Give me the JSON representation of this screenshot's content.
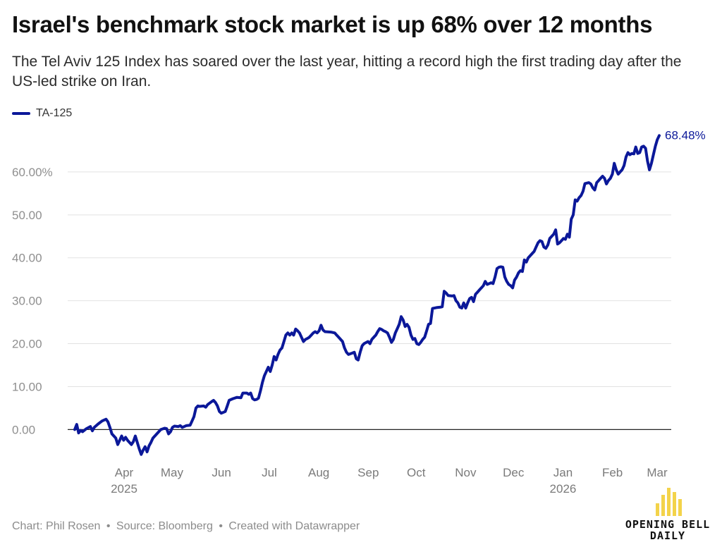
{
  "header": {
    "title": "Israel's benchmark stock market is up 68% over 12 months",
    "subtitle": "The Tel Aviv 125 Index has soared over the last year, hitting a record high the first trading day after the US-led strike on Iran."
  },
  "footer": {
    "credit": "Chart: Phil Rosen",
    "source": "Source: Bloomberg",
    "tool": "Created with Datawrapper",
    "separator": "•"
  },
  "brand": {
    "line1": "OPENING BELL",
    "line2": "DAILY",
    "accent_color": "#f3d34a"
  },
  "chart_data": {
    "type": "line",
    "ylim": [
      -7,
      70
    ],
    "yticks": [
      0,
      10,
      20,
      30,
      40,
      50,
      60
    ],
    "ytick_labels": [
      "0.00",
      "10.00",
      "20.00",
      "30.00",
      "40.00",
      "50.00",
      "60.00%"
    ],
    "xlim": [
      0,
      365
    ],
    "xticks": [
      {
        "day": 30,
        "label": "Apr",
        "sublabel": "2025"
      },
      {
        "day": 60,
        "label": "May",
        "sublabel": ""
      },
      {
        "day": 91,
        "label": "Jun",
        "sublabel": ""
      },
      {
        "day": 121,
        "label": "Jul",
        "sublabel": ""
      },
      {
        "day": 152,
        "label": "Aug",
        "sublabel": ""
      },
      {
        "day": 183,
        "label": "Sep",
        "sublabel": ""
      },
      {
        "day": 213,
        "label": "Oct",
        "sublabel": ""
      },
      {
        "day": 244,
        "label": "Nov",
        "sublabel": ""
      },
      {
        "day": 274,
        "label": "Dec",
        "sublabel": ""
      },
      {
        "day": 305,
        "label": "Jan",
        "sublabel": "2026"
      },
      {
        "day": 336,
        "label": "Feb",
        "sublabel": ""
      },
      {
        "day": 364,
        "label": "Mar",
        "sublabel": ""
      }
    ],
    "grid": true,
    "legend": "top-left",
    "series": [
      {
        "name": "TA-125",
        "color": "#0b1899",
        "end_label": "68.48%",
        "points": [
          [
            0,
            0
          ],
          [
            1,
            1.2
          ],
          [
            2,
            -0.8
          ],
          [
            3,
            -0.2
          ],
          [
            4,
            -0.5
          ],
          [
            6,
            0.2
          ],
          [
            8,
            0.7
          ],
          [
            9,
            -0.3
          ],
          [
            10,
            0.5
          ],
          [
            12,
            1.3
          ],
          [
            14,
            2
          ],
          [
            16,
            2.4
          ],
          [
            17,
            1.8
          ],
          [
            18,
            0.5
          ],
          [
            19,
            -1
          ],
          [
            21,
            -2
          ],
          [
            22,
            -3.5
          ],
          [
            23,
            -2.5
          ],
          [
            24,
            -1.5
          ],
          [
            25,
            -2.5
          ],
          [
            26,
            -1.8
          ],
          [
            27,
            -2.5
          ],
          [
            28,
            -3
          ],
          [
            29,
            -3.5
          ],
          [
            30,
            -2.8
          ],
          [
            31,
            -1.5
          ],
          [
            32,
            -3
          ],
          [
            33,
            -4.5
          ],
          [
            34,
            -5.8
          ],
          [
            35,
            -4.8
          ],
          [
            36,
            -4
          ],
          [
            37,
            -5.2
          ],
          [
            38,
            -3.8
          ],
          [
            39,
            -3
          ],
          [
            40,
            -2
          ],
          [
            42,
            -1
          ],
          [
            44,
            0
          ],
          [
            46,
            0.3
          ],
          [
            47,
            0.2
          ],
          [
            48,
            -1
          ],
          [
            49,
            -0.5
          ],
          [
            50,
            0.5
          ],
          [
            51,
            0.8
          ],
          [
            53,
            0.7
          ],
          [
            54,
            0.9
          ],
          [
            55,
            0.5
          ],
          [
            57,
            0.9
          ],
          [
            59,
            1
          ],
          [
            60,
            2
          ],
          [
            61,
            3
          ],
          [
            62,
            5
          ],
          [
            63,
            5.5
          ],
          [
            64,
            5.4
          ],
          [
            66,
            5.5
          ],
          [
            67,
            5.2
          ],
          [
            68,
            5.8
          ],
          [
            70,
            6.5
          ],
          [
            71,
            6.8
          ],
          [
            72,
            6.3
          ],
          [
            73,
            5.5
          ],
          [
            74,
            4.2
          ],
          [
            75,
            3.8
          ],
          [
            77,
            4.2
          ],
          [
            78,
            5.5
          ],
          [
            79,
            6.8
          ],
          [
            81,
            7.2
          ],
          [
            83,
            7.5
          ],
          [
            85,
            7.4
          ],
          [
            86,
            8.5
          ],
          [
            88,
            8.5
          ],
          [
            89,
            8.2
          ],
          [
            90,
            8.5
          ],
          [
            91,
            7.2
          ],
          [
            92,
            6.9
          ],
          [
            93,
            7
          ],
          [
            94,
            7.3
          ],
          [
            95,
            9
          ],
          [
            96,
            11
          ],
          [
            97,
            12.5
          ],
          [
            98,
            13.5
          ],
          [
            99,
            14.5
          ],
          [
            100,
            13.5
          ],
          [
            101,
            15
          ],
          [
            102,
            17
          ],
          [
            103,
            16.2
          ],
          [
            104,
            17.5
          ],
          [
            105,
            18.5
          ],
          [
            106,
            19
          ],
          [
            107,
            20.5
          ],
          [
            108,
            22
          ],
          [
            109,
            22.5
          ],
          [
            110,
            22
          ],
          [
            111,
            22.5
          ],
          [
            112,
            22
          ],
          [
            113,
            23.4
          ],
          [
            114,
            23
          ],
          [
            115,
            22.5
          ],
          [
            116,
            21.5
          ],
          [
            117,
            20.5
          ],
          [
            118,
            21
          ],
          [
            119,
            21.2
          ],
          [
            120,
            21.5
          ],
          [
            121,
            22
          ],
          [
            122,
            22.5
          ],
          [
            123,
            22.8
          ],
          [
            124,
            22.5
          ],
          [
            125,
            23
          ],
          [
            126,
            24.3
          ],
          [
            127,
            23.2
          ],
          [
            128,
            22.8
          ],
          [
            131,
            22.7
          ],
          [
            133,
            22.5
          ],
          [
            134,
            22
          ],
          [
            135,
            21.5
          ],
          [
            136,
            21
          ],
          [
            137,
            20.5
          ],
          [
            138,
            19
          ],
          [
            139,
            18
          ],
          [
            140,
            17.5
          ],
          [
            142,
            17.8
          ],
          [
            143,
            18
          ],
          [
            144,
            16.5
          ],
          [
            145,
            16.2
          ],
          [
            146,
            18
          ],
          [
            147,
            19.5
          ],
          [
            148,
            20
          ],
          [
            150,
            20.5
          ],
          [
            151,
            20
          ],
          [
            152,
            21
          ],
          [
            153,
            21.5
          ],
          [
            154,
            22
          ],
          [
            155,
            22.8
          ],
          [
            156,
            23.5
          ],
          [
            157,
            23.3
          ],
          [
            158,
            23
          ],
          [
            159,
            22.8
          ],
          [
            160,
            22.5
          ],
          [
            161,
            21.5
          ],
          [
            162,
            20.3
          ],
          [
            163,
            21
          ],
          [
            164,
            22.5
          ],
          [
            165,
            23.5
          ],
          [
            166,
            24.5
          ],
          [
            167,
            26.3
          ],
          [
            168,
            25.5
          ],
          [
            169,
            24
          ],
          [
            170,
            24.5
          ],
          [
            171,
            23.8
          ],
          [
            172,
            22
          ],
          [
            173,
            21
          ],
          [
            174,
            21.2
          ],
          [
            175,
            20
          ],
          [
            176,
            19.8
          ],
          [
            177,
            20.3
          ],
          [
            178,
            21
          ],
          [
            179,
            21.5
          ],
          [
            180,
            23
          ],
          [
            181,
            24.5
          ],
          [
            182,
            24.7
          ],
          [
            183,
            28.2
          ],
          [
            185,
            28.4
          ],
          [
            187,
            28.5
          ],
          [
            188,
            28.6
          ],
          [
            189,
            32.2
          ],
          [
            190,
            31.8
          ],
          [
            191,
            31.2
          ],
          [
            193,
            31.1
          ],
          [
            194,
            31.2
          ],
          [
            195,
            30
          ],
          [
            196,
            29.5
          ],
          [
            197,
            28.5
          ],
          [
            198,
            28.3
          ],
          [
            199,
            29.5
          ],
          [
            200,
            28.3
          ],
          [
            201,
            29.5
          ],
          [
            202,
            30.5
          ],
          [
            203,
            30.8
          ],
          [
            204,
            29.8
          ],
          [
            205,
            31.5
          ],
          [
            206,
            32
          ],
          [
            207,
            32.5
          ],
          [
            208,
            33
          ],
          [
            209,
            33.5
          ],
          [
            210,
            34.5
          ],
          [
            211,
            33.8
          ],
          [
            212,
            34
          ],
          [
            213,
            34.2
          ],
          [
            214,
            34
          ],
          [
            215,
            35.5
          ],
          [
            216,
            37.5
          ],
          [
            217,
            37.8
          ],
          [
            218,
            37.9
          ],
          [
            219,
            37.8
          ],
          [
            220,
            35.5
          ],
          [
            221,
            34.5
          ],
          [
            222,
            33.8
          ],
          [
            223,
            33.5
          ],
          [
            224,
            33
          ],
          [
            225,
            34.8
          ],
          [
            226,
            35.5
          ],
          [
            227,
            36.5
          ],
          [
            228,
            37
          ],
          [
            229,
            36.8
          ],
          [
            230,
            39.5
          ],
          [
            231,
            39
          ],
          [
            232,
            40
          ],
          [
            233,
            40.5
          ],
          [
            234,
            41
          ],
          [
            235,
            41.5
          ],
          [
            236,
            42.5
          ],
          [
            237,
            43.5
          ],
          [
            238,
            44
          ],
          [
            239,
            43.8
          ],
          [
            240,
            42.5
          ],
          [
            241,
            42.2
          ],
          [
            242,
            43
          ],
          [
            243,
            44.5
          ],
          [
            244,
            45
          ],
          [
            245,
            45.5
          ],
          [
            246,
            46.5
          ],
          [
            247,
            43.2
          ],
          [
            248,
            43.5
          ],
          [
            249,
            44
          ],
          [
            250,
            44.5
          ],
          [
            251,
            44.3
          ],
          [
            252,
            45.5
          ],
          [
            253,
            44.8
          ],
          [
            254,
            49
          ],
          [
            255,
            50
          ],
          [
            256,
            53.5
          ],
          [
            257,
            53.2
          ],
          [
            258,
            54
          ],
          [
            259,
            54.5
          ],
          [
            260,
            55.5
          ],
          [
            261,
            57.3
          ],
          [
            263,
            57.5
          ],
          [
            264,
            57.2
          ],
          [
            265,
            56.3
          ],
          [
            266,
            55.8
          ],
          [
            267,
            57.5
          ],
          [
            268,
            58
          ],
          [
            269,
            58.5
          ],
          [
            270,
            59
          ],
          [
            271,
            58.5
          ],
          [
            272,
            57.2
          ],
          [
            273,
            58
          ],
          [
            274,
            58.5
          ],
          [
            275,
            59.5
          ],
          [
            276,
            62
          ],
          [
            277,
            60.5
          ],
          [
            278,
            59.5
          ],
          [
            279,
            60
          ],
          [
            280,
            60.5
          ],
          [
            281,
            61.5
          ],
          [
            282,
            63.5
          ],
          [
            283,
            64.5
          ],
          [
            284,
            64
          ],
          [
            285,
            64.3
          ],
          [
            286,
            64.2
          ],
          [
            287,
            65.8
          ],
          [
            288,
            64.3
          ],
          [
            289,
            64.5
          ],
          [
            290,
            65.8
          ],
          [
            291,
            66
          ],
          [
            292,
            65.5
          ],
          [
            293,
            62.5
          ],
          [
            294,
            60.5
          ],
          [
            295,
            62
          ],
          [
            296,
            64
          ],
          [
            297,
            66
          ],
          [
            298,
            67.5
          ],
          [
            299,
            68.48
          ]
        ]
      }
    ]
  }
}
